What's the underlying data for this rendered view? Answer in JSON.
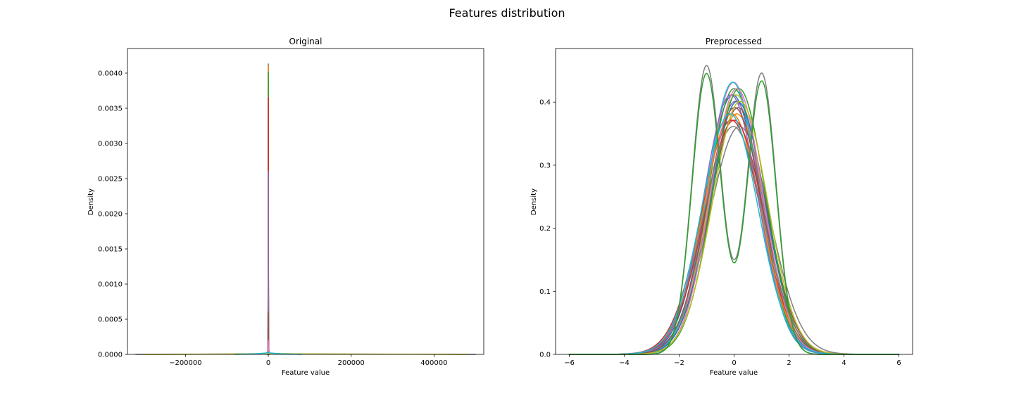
{
  "figure": {
    "title": "Features distribution"
  },
  "colors": {
    "cycle": [
      "#1f77b4",
      "#ff7f0e",
      "#2ca02c",
      "#d62728",
      "#9467bd",
      "#8c564b",
      "#e377c2",
      "#7f7f7f",
      "#bcbd22",
      "#17becf"
    ]
  },
  "chart_data": [
    {
      "type": "line",
      "chart_kind": "kde",
      "title": "Original",
      "xlabel": "Feature value",
      "ylabel": "Density",
      "xlim": [
        -340000,
        520000
      ],
      "ylim": [
        0,
        0.00435
      ],
      "x_ticks": [
        -200000,
        0,
        200000,
        400000
      ],
      "x_tick_labels": [
        "−200000",
        "0",
        "200000",
        "400000"
      ],
      "y_ticks": [
        0,
        0.0005,
        0.001,
        0.0015,
        0.002,
        0.0025,
        0.003,
        0.0035,
        0.004
      ],
      "y_tick_labels": [
        "0.0000",
        "0.0005",
        "0.0010",
        "0.0015",
        "0.0020",
        "0.0025",
        "0.0030",
        "0.0035",
        "0.0040"
      ],
      "grid": false,
      "legend": "none",
      "series": [
        {
          "x": [
            -2000,
            -800,
            -300,
            0,
            300,
            800,
            2000
          ],
          "y": [
            0,
            0.0001,
            0.0015,
            0.00413,
            0.0015,
            0.0001,
            0
          ]
        },
        {
          "x": [
            -2000,
            -800,
            -300,
            0,
            300,
            800,
            2000
          ],
          "y": [
            0,
            0.0001,
            0.0015,
            0.00411,
            0.0015,
            0.0001,
            0
          ]
        },
        {
          "x": [
            -2000,
            -800,
            -300,
            0,
            300,
            800,
            2000
          ],
          "y": [
            0,
            0.0001,
            0.0014,
            0.00401,
            0.0014,
            0.0001,
            0
          ]
        },
        {
          "x": [
            -2000,
            -800,
            -300,
            0,
            300,
            800,
            2000
          ],
          "y": [
            0,
            0.0001,
            0.0012,
            0.00365,
            0.0012,
            0.0001,
            0
          ]
        },
        {
          "x": [
            -2000,
            -800,
            -300,
            0,
            300,
            800,
            2000
          ],
          "y": [
            0,
            0.0001,
            0.0009,
            0.0026,
            0.0009,
            0.0001,
            0
          ]
        },
        {
          "x": [
            -2000,
            -800,
            -300,
            0,
            300,
            800,
            2000
          ],
          "y": [
            0,
            5e-05,
            0.0002,
            0.0006,
            0.0002,
            5e-05,
            0
          ]
        },
        {
          "x": [
            -2000,
            -800,
            -300,
            0,
            300,
            800,
            2000
          ],
          "y": [
            0,
            5e-05,
            0.0001,
            0.0002,
            0.0001,
            5e-05,
            0
          ]
        },
        {
          "x": [
            -320000,
            -200000,
            -100000,
            -20000,
            0,
            20000,
            100000,
            200000,
            300000,
            400000,
            500000
          ],
          "y": [
            0,
            2e-06,
            5e-06,
            1e-05,
            1.5e-05,
            1e-05,
            6e-06,
            4e-06,
            3e-06,
            2e-06,
            0
          ]
        },
        {
          "x": [
            -300000,
            -200000,
            -60000,
            -10000,
            0,
            10000,
            60000,
            200000,
            350000,
            480000
          ],
          "y": [
            0,
            1e-06,
            6e-06,
            1.2e-05,
            1.4e-05,
            1.2e-05,
            7e-06,
            4e-06,
            2e-06,
            0
          ]
        },
        {
          "x": [
            -80000,
            -30000,
            -5000,
            0,
            5000,
            30000,
            80000
          ],
          "y": [
            0,
            8e-06,
            2e-05,
            2.8e-05,
            2e-05,
            8e-06,
            0
          ]
        }
      ]
    },
    {
      "type": "line",
      "chart_kind": "kde",
      "title": "Preprocessed",
      "xlabel": "Feature value",
      "ylabel": "Density",
      "xlim": [
        -6.5,
        6.5
      ],
      "ylim": [
        0,
        0.485
      ],
      "x_ticks": [
        -6,
        -4,
        -2,
        0,
        2,
        4,
        6
      ],
      "x_tick_labels": [
        "−6",
        "−4",
        "−2",
        "0",
        "2",
        "4",
        "6"
      ],
      "y_ticks": [
        0,
        0.1,
        0.2,
        0.3,
        0.4
      ],
      "y_tick_labels": [
        "0.0",
        "0.1",
        "0.2",
        "0.3",
        "0.4"
      ],
      "grid": false,
      "legend": "none",
      "unimodal_curves": [
        {
          "peak": 0.41,
          "mean": -0.05,
          "width": 1.0
        },
        {
          "peak": 0.38,
          "mean": 0.1,
          "width": 1.05
        },
        {
          "peak": 0.42,
          "mean": 0.0,
          "width": 0.95
        },
        {
          "peak": 0.37,
          "mean": -0.1,
          "width": 1.08
        },
        {
          "peak": 0.4,
          "mean": 0.05,
          "width": 1.0
        },
        {
          "peak": 0.39,
          "mean": 0.15,
          "width": 1.02
        },
        {
          "peak": 0.43,
          "mean": -0.02,
          "width": 0.93
        },
        {
          "peak": 0.36,
          "mean": 0.2,
          "width": 1.1
        },
        {
          "peak": 0.41,
          "mean": 0.08,
          "width": 0.98
        },
        {
          "peak": 0.43,
          "mean": -0.05,
          "width": 0.94
        },
        {
          "peak": 0.4,
          "mean": 0.12,
          "width": 1.0
        },
        {
          "peak": 0.38,
          "mean": -0.08,
          "width": 1.04
        },
        {
          "peak": 0.42,
          "mean": 0.18,
          "width": 0.96
        },
        {
          "peak": 0.37,
          "mean": 0.0,
          "width": 1.07
        },
        {
          "peak": 0.41,
          "mean": -0.12,
          "width": 0.99
        },
        {
          "peak": 0.39,
          "mean": 0.02,
          "width": 1.01
        },
        {
          "peak": 0.42,
          "mean": 0.1,
          "width": 0.95
        },
        {
          "peak": 0.36,
          "mean": -0.03,
          "width": 1.09
        },
        {
          "peak": 0.4,
          "mean": 0.22,
          "width": 1.0
        },
        {
          "peak": 0.38,
          "mean": -0.15,
          "width": 1.03
        }
      ],
      "bimodal_curves": [
        {
          "color_index": 7,
          "modes": [
            -1.0,
            1.0
          ],
          "peaks": [
            0.46,
            0.448
          ],
          "valley": 0.15
        },
        {
          "color_index": 2,
          "modes": [
            -1.0,
            1.0
          ],
          "peaks": [
            0.448,
            0.436
          ],
          "valley": 0.145
        }
      ]
    }
  ]
}
